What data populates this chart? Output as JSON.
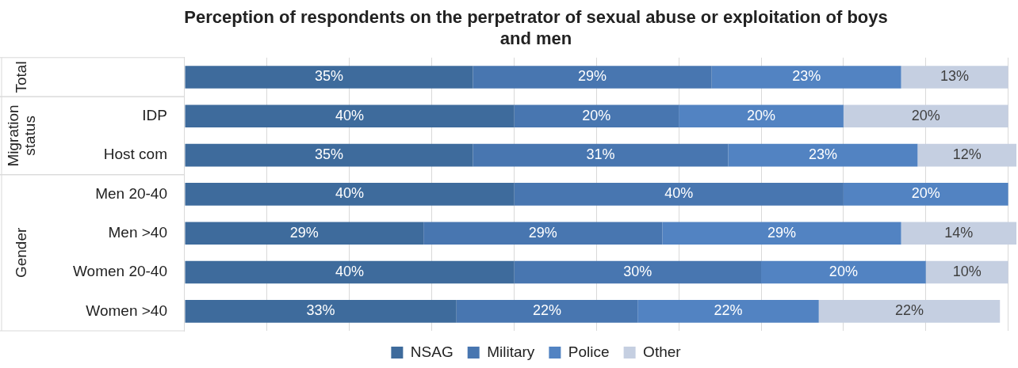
{
  "chart_data": {
    "type": "bar",
    "orientation": "horizontal",
    "stacked": true,
    "title": "Perception of respondents on the perpetrator of sexual abuse or exploitation of boys and men",
    "categories": [
      null,
      "IDP",
      "Host com",
      "Men 20-40",
      "Men >40",
      "Women 20-40",
      "Women >40"
    ],
    "series": [
      {
        "name": "NSAG",
        "color": "#3e6b9c",
        "values": [
          35,
          40,
          35,
          40,
          29,
          40,
          33
        ],
        "value_labels": [
          "35%",
          "40%",
          "35%",
          "40%",
          "29%",
          "40%",
          "33%"
        ]
      },
      {
        "name": "Military",
        "color": "#4876b0",
        "values": [
          29,
          20,
          31,
          40,
          29,
          30,
          22
        ],
        "value_labels": [
          "29%",
          "20%",
          "31%",
          "40%",
          "29%",
          "30%",
          "22%"
        ]
      },
      {
        "name": "Police",
        "color": "#5283c2",
        "values": [
          23,
          20,
          23,
          20,
          29,
          20,
          22
        ],
        "value_labels": [
          "23%",
          "20%",
          "23%",
          "20%",
          "29%",
          "20%",
          "22%"
        ]
      },
      {
        "name": "Other",
        "color": "#c5cfe1",
        "values": [
          13,
          20,
          12,
          0,
          14,
          10,
          22
        ],
        "value_labels": [
          "13%",
          "20%",
          "12%",
          null,
          "14%",
          "10%",
          "22%"
        ]
      }
    ],
    "xlim": [
      0,
      101
    ],
    "xticks": [
      {
        "value": 0,
        "label": null
      },
      {
        "value": 10,
        "label": null
      },
      {
        "value": 20,
        "label": null
      },
      {
        "value": 30,
        "label": null
      },
      {
        "value": 40,
        "label": null
      },
      {
        "value": 50,
        "label": null
      },
      {
        "value": 60,
        "label": null
      },
      {
        "value": 70,
        "label": null
      },
      {
        "value": 80,
        "label": null
      },
      {
        "value": 90,
        "label": null
      },
      {
        "value": 100,
        "label": null
      }
    ],
    "grid": "x",
    "legend": "bottom",
    "tick_labels": "y",
    "annotations": [
      "Total",
      "Migration status",
      "Gender"
    ]
  }
}
